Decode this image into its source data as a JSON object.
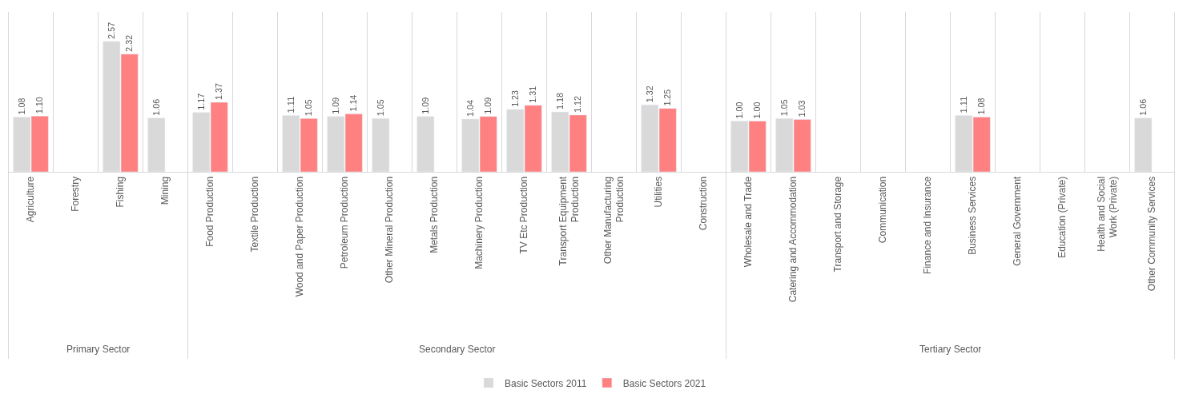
{
  "chart_data": {
    "type": "bar",
    "categories": [
      "Agriculture",
      "Forestry",
      "Fishing",
      "Mining",
      "Food Production",
      "Textile Production",
      "Wood and Paper Production",
      "Petroleum Production",
      "Other Mineral Production",
      "Metals Production",
      "Machinery Production",
      "TV Etc Production",
      "Transport Equipment Production",
      "Other Manufacturing Production",
      "Utilities",
      "Construction",
      "Wholesale and Trade",
      "Catering and Accommodation",
      "Transport and Storage",
      "Communication",
      "Finance and Insurance",
      "Business Services",
      "General Government",
      "Education (Private)",
      "Health and Social Work (Private)",
      "Other Community Services"
    ],
    "series": [
      {
        "name": "Basic Sectors 2011",
        "color": "#d9d9d9",
        "values": [
          1.08,
          null,
          2.57,
          1.06,
          1.17,
          null,
          1.11,
          1.09,
          1.05,
          1.09,
          1.04,
          1.23,
          1.18,
          null,
          1.32,
          null,
          1.0,
          1.05,
          null,
          null,
          null,
          1.11,
          null,
          null,
          null,
          1.06
        ],
        "value_labels": [
          "1.08",
          null,
          "2.57",
          "1.06",
          "1.17",
          null,
          "1.11",
          "1.09",
          "1.05",
          "1.09",
          "1.04",
          "1.23",
          "1.18",
          null,
          "1.32",
          null,
          "1.00",
          "1.05",
          null,
          null,
          null,
          "1.11",
          null,
          null,
          null,
          "1.06"
        ]
      },
      {
        "name": "Basic Sectors 2021",
        "color": "#ff8080",
        "values": [
          1.1,
          null,
          2.32,
          null,
          1.37,
          null,
          1.05,
          1.14,
          null,
          null,
          1.09,
          1.31,
          1.12,
          null,
          1.25,
          null,
          1.0,
          1.03,
          null,
          null,
          null,
          1.08,
          null,
          null,
          null,
          null
        ],
        "value_labels": [
          "1.10",
          null,
          "2.32",
          null,
          "1.37",
          null,
          "1.05",
          "1.14",
          null,
          null,
          "1.09",
          "1.31",
          "1.12",
          null,
          "1.25",
          null,
          "1.00",
          "1.03",
          null,
          null,
          null,
          "1.08",
          null,
          null,
          null,
          null
        ]
      }
    ],
    "ylim": [
      0,
      3.15
    ],
    "annotations": [
      "Primary Sector",
      "Secondary Sector",
      "Tertiary Sector"
    ],
    "tick_labels": "x",
    "grid": "x",
    "legend": "bottom"
  }
}
